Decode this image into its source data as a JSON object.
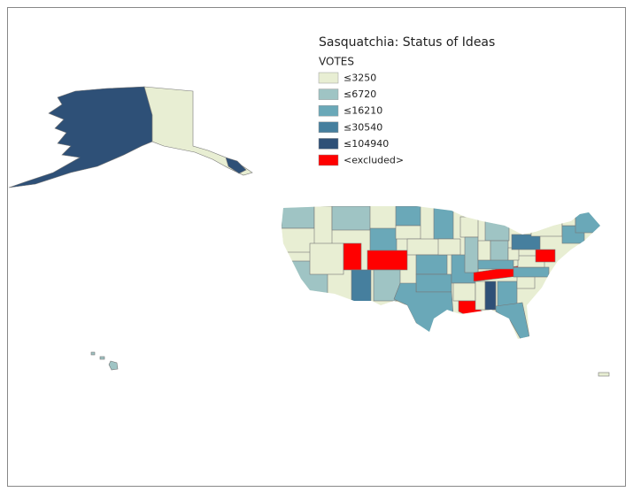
{
  "title": "Sasquatchia: Status of Ideas",
  "legend": {
    "title": "VOTES",
    "items": [
      {
        "label": "≤3250",
        "color": "#e8eed3"
      },
      {
        "label": "≤6720",
        "color": "#9fc4c4"
      },
      {
        "label": "≤16210",
        "color": "#6aa8b8"
      },
      {
        "label": "≤30540",
        "color": "#467f9e"
      },
      {
        "label": "≤104940",
        "color": "#2e5077"
      },
      {
        "label": "<excluded>",
        "color": "#ff0000"
      }
    ]
  }
}
